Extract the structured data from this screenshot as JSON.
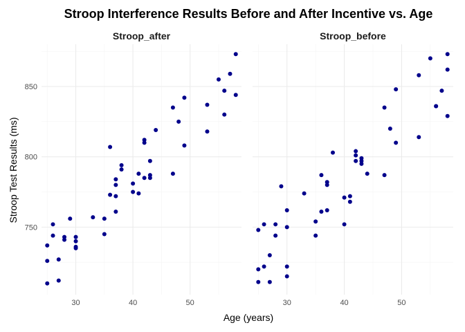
{
  "chart_data": {
    "type": "scatter",
    "title": "Stroop Interference Results Before and After Incentive vs. Age",
    "xlabel": "Age (years)",
    "ylabel": "Stroop Test Results (ms)",
    "xlim": [
      24,
      59
    ],
    "ylim": [
      702,
      880
    ],
    "x_ticks": [
      30,
      40,
      50
    ],
    "y_ticks": [
      750,
      800,
      850
    ],
    "x_minor": [
      25,
      35,
      45,
      55
    ],
    "y_minor": [
      725,
      775,
      825,
      875
    ],
    "grid": true,
    "legend": "none",
    "point_color": "#00008b",
    "facets": [
      {
        "name": "Stroop_after",
        "points": [
          [
            25,
            737
          ],
          [
            25,
            726
          ],
          [
            25,
            710
          ],
          [
            26,
            752
          ],
          [
            26,
            744
          ],
          [
            27,
            727
          ],
          [
            27,
            712
          ],
          [
            28,
            743
          ],
          [
            28,
            741
          ],
          [
            29,
            756
          ],
          [
            30,
            743
          ],
          [
            30,
            740
          ],
          [
            30,
            736
          ],
          [
            30,
            735
          ],
          [
            33,
            757
          ],
          [
            35,
            756
          ],
          [
            35,
            745
          ],
          [
            36,
            807
          ],
          [
            36,
            773
          ],
          [
            37,
            784
          ],
          [
            37,
            780
          ],
          [
            37,
            772
          ],
          [
            37,
            761
          ],
          [
            38,
            794
          ],
          [
            38,
            791
          ],
          [
            40,
            781
          ],
          [
            40,
            775
          ],
          [
            41,
            788
          ],
          [
            41,
            774
          ],
          [
            42,
            812
          ],
          [
            42,
            810
          ],
          [
            42,
            785
          ],
          [
            43,
            797
          ],
          [
            43,
            787
          ],
          [
            43,
            785
          ],
          [
            44,
            819
          ],
          [
            47,
            835
          ],
          [
            47,
            788
          ],
          [
            48,
            825
          ],
          [
            49,
            842
          ],
          [
            49,
            808
          ],
          [
            53,
            837
          ],
          [
            53,
            818
          ],
          [
            55,
            855
          ],
          [
            56,
            847
          ],
          [
            56,
            830
          ],
          [
            57,
            859
          ],
          [
            58,
            873
          ],
          [
            58,
            844
          ]
        ]
      },
      {
        "name": "Stroop_before",
        "points": [
          [
            25,
            748
          ],
          [
            25,
            720
          ],
          [
            25,
            711
          ],
          [
            26,
            752
          ],
          [
            26,
            722
          ],
          [
            27,
            730
          ],
          [
            27,
            711
          ],
          [
            28,
            752
          ],
          [
            28,
            744
          ],
          [
            29,
            779
          ],
          [
            30,
            762
          ],
          [
            30,
            750
          ],
          [
            30,
            722
          ],
          [
            30,
            715
          ],
          [
            33,
            774
          ],
          [
            35,
            754
          ],
          [
            35,
            744
          ],
          [
            36,
            787
          ],
          [
            36,
            761
          ],
          [
            37,
            782
          ],
          [
            37,
            780
          ],
          [
            37,
            762
          ],
          [
            38,
            803
          ],
          [
            40,
            771
          ],
          [
            40,
            752
          ],
          [
            41,
            772
          ],
          [
            41,
            768
          ],
          [
            42,
            804
          ],
          [
            42,
            801
          ],
          [
            42,
            797
          ],
          [
            43,
            799
          ],
          [
            43,
            797
          ],
          [
            43,
            795
          ],
          [
            44,
            788
          ],
          [
            47,
            835
          ],
          [
            47,
            787
          ],
          [
            48,
            820
          ],
          [
            49,
            848
          ],
          [
            49,
            810
          ],
          [
            53,
            858
          ],
          [
            53,
            814
          ],
          [
            55,
            870
          ],
          [
            56,
            836
          ],
          [
            56,
            836
          ],
          [
            57,
            847
          ],
          [
            58,
            873
          ],
          [
            58,
            862
          ],
          [
            58,
            829
          ]
        ]
      }
    ]
  }
}
